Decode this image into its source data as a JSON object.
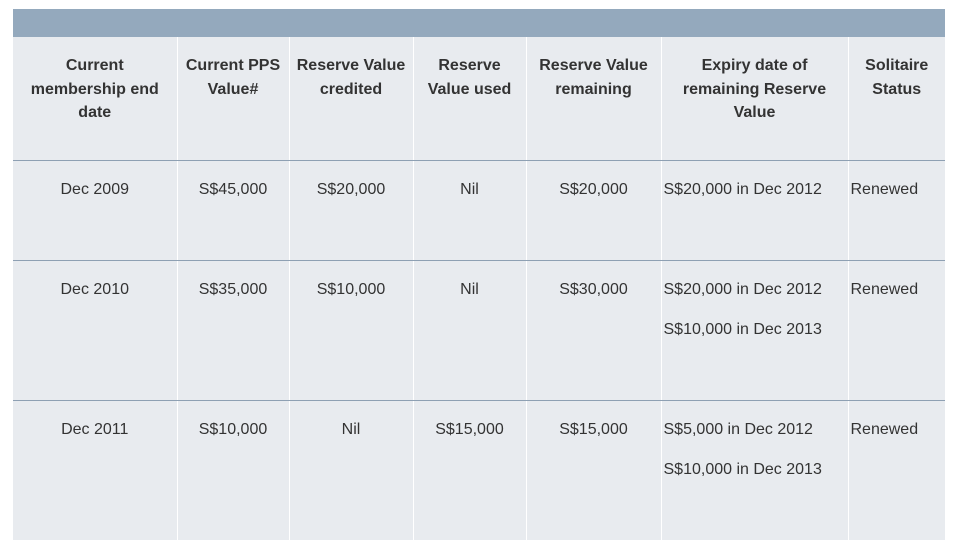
{
  "table": {
    "headers": [
      "Current membership end date",
      "Current PPS Value#",
      "Reserve Value credited",
      "Reserve Value used",
      "Reserve Value remaining",
      "Expiry date of remaining Reserve Value",
      "Solitaire Status"
    ],
    "rows": [
      {
        "end_date": "Dec 2009",
        "pps_value": "S$45,000",
        "credited": "S$20,000",
        "used": "Nil",
        "remaining": "S$20,000",
        "expiry": [
          "S$20,000 in Dec 2012"
        ],
        "status": "Renewed"
      },
      {
        "end_date": "Dec 2010",
        "pps_value": "S$35,000",
        "credited": "S$10,000",
        "used": "Nil",
        "remaining": "S$30,000",
        "expiry": [
          "S$20,000 in Dec 2012",
          "S$10,000 in Dec 2013"
        ],
        "status": "Renewed"
      },
      {
        "end_date": "Dec 2011",
        "pps_value": "S$10,000",
        "credited": "Nil",
        "used": "S$15,000",
        "remaining": "S$15,000",
        "expiry": [
          "S$5,000 in Dec 2012",
          "S$10,000 in Dec 2013"
        ],
        "status": "Renewed"
      }
    ]
  },
  "colors": {
    "title_bar": "#94a9bd",
    "table_bg": "#e8ebef",
    "row_divider": "#8ea0b3",
    "text": "#333333"
  }
}
